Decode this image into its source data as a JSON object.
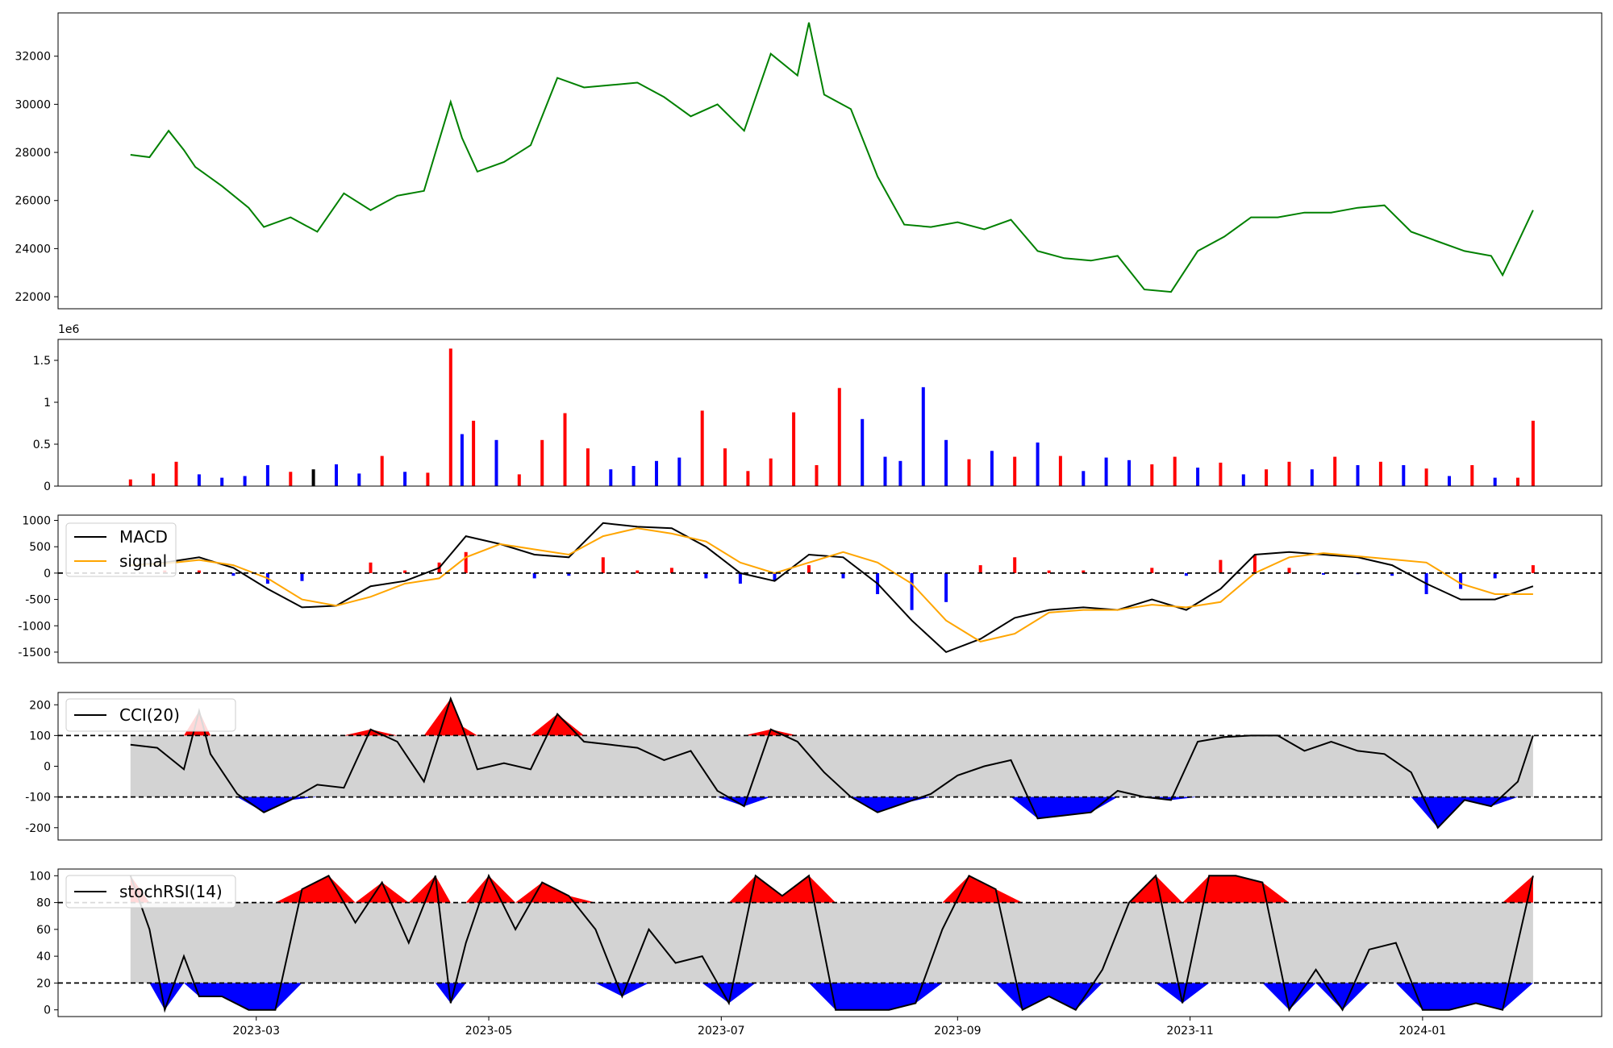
{
  "chart_data": [
    {
      "panel": "price",
      "type": "line",
      "color": "#008000",
      "x": [
        "2023-01-27",
        "2023-02-01",
        "2023-02-06",
        "2023-02-10",
        "2023-02-13",
        "2023-02-20",
        "2023-02-27",
        "2023-03-03",
        "2023-03-10",
        "2023-03-17",
        "2023-03-24",
        "2023-03-31",
        "2023-04-07",
        "2023-04-14",
        "2023-04-21",
        "2023-04-24",
        "2023-04-28",
        "2023-05-05",
        "2023-05-12",
        "2023-05-19",
        "2023-05-26",
        "2023-06-02",
        "2023-06-09",
        "2023-06-16",
        "2023-06-23",
        "2023-06-30",
        "2023-07-07",
        "2023-07-14",
        "2023-07-21",
        "2023-07-24",
        "2023-07-28",
        "2023-08-04",
        "2023-08-11",
        "2023-08-18",
        "2023-08-25",
        "2023-09-01",
        "2023-09-08",
        "2023-09-15",
        "2023-09-22",
        "2023-09-29",
        "2023-10-06",
        "2023-10-13",
        "2023-10-20",
        "2023-10-27",
        "2023-11-03",
        "2023-11-10",
        "2023-11-17",
        "2023-11-24",
        "2023-12-01",
        "2023-12-08",
        "2023-12-15",
        "2023-12-22",
        "2023-12-29",
        "2024-01-05",
        "2024-01-12",
        "2024-01-19",
        "2024-01-22",
        "2024-01-30"
      ],
      "values": [
        27900,
        27800,
        28900,
        28100,
        27400,
        26600,
        25700,
        24900,
        25300,
        24700,
        26300,
        25600,
        26200,
        26400,
        30100,
        28600,
        27200,
        27600,
        28300,
        31100,
        30700,
        30800,
        30900,
        30300,
        29500,
        30000,
        28900,
        32100,
        31200,
        33400,
        30400,
        29800,
        27000,
        25000,
        24900,
        25100,
        24800,
        25200,
        23900,
        23600,
        23500,
        23700,
        22300,
        22200,
        23900,
        24500,
        25300,
        25300,
        25500,
        25500,
        25700,
        25800,
        24700,
        24300,
        23900,
        23700,
        22900,
        25600
      ],
      "ylim": [
        21500,
        33800
      ],
      "yticks": [
        22000,
        24000,
        26000,
        28000,
        30000,
        32000
      ]
    },
    {
      "panel": "volume",
      "type": "bar",
      "scale_label": "1e6",
      "ylim": [
        0,
        1.75
      ],
      "yticks": [
        0.0,
        0.5,
        1.0,
        1.5
      ],
      "x": [
        "2023-01-27",
        "2023-02-02",
        "2023-02-08",
        "2023-02-14",
        "2023-02-20",
        "2023-02-26",
        "2023-03-04",
        "2023-03-10",
        "2023-03-16",
        "2023-03-22",
        "2023-03-28",
        "2023-04-03",
        "2023-04-09",
        "2023-04-15",
        "2023-04-21",
        "2023-04-24",
        "2023-04-27",
        "2023-05-03",
        "2023-05-09",
        "2023-05-15",
        "2023-05-21",
        "2023-05-27",
        "2023-06-02",
        "2023-06-08",
        "2023-06-14",
        "2023-06-20",
        "2023-06-26",
        "2023-07-02",
        "2023-07-08",
        "2023-07-14",
        "2023-07-20",
        "2023-07-26",
        "2023-08-01",
        "2023-08-07",
        "2023-08-13",
        "2023-08-17",
        "2023-08-23",
        "2023-08-29",
        "2023-09-04",
        "2023-09-10",
        "2023-09-16",
        "2023-09-22",
        "2023-09-28",
        "2023-10-04",
        "2023-10-10",
        "2023-10-16",
        "2023-10-22",
        "2023-10-28",
        "2023-11-03",
        "2023-11-09",
        "2023-11-15",
        "2023-11-21",
        "2023-11-27",
        "2023-12-03",
        "2023-12-09",
        "2023-12-15",
        "2023-12-21",
        "2023-12-27",
        "2024-01-02",
        "2024-01-08",
        "2024-01-14",
        "2024-01-20",
        "2024-01-26",
        "2024-01-30"
      ],
      "values": [
        0.08,
        0.15,
        0.29,
        0.14,
        0.1,
        0.12,
        0.25,
        0.17,
        0.2,
        0.26,
        0.15,
        0.36,
        0.17,
        0.16,
        1.64,
        0.62,
        0.78,
        0.55,
        0.14,
        0.55,
        0.87,
        0.45,
        0.2,
        0.24,
        0.3,
        0.34,
        0.9,
        0.45,
        0.18,
        0.33,
        0.88,
        0.25,
        1.17,
        0.8,
        0.35,
        0.3,
        1.18,
        0.55,
        0.32,
        0.42,
        0.35,
        0.52,
        0.36,
        0.18,
        0.34,
        0.31,
        0.26,
        0.35,
        0.22,
        0.28,
        0.14,
        0.2,
        0.29,
        0.2,
        0.35,
        0.25,
        0.29,
        0.25,
        0.21,
        0.12,
        0.25,
        0.1,
        0.1,
        0.78
      ],
      "colors": [
        "red",
        "red",
        "red",
        "blue",
        "blue",
        "blue",
        "blue",
        "red",
        "black",
        "blue",
        "blue",
        "red",
        "blue",
        "red",
        "red",
        "blue",
        "red",
        "blue",
        "red",
        "red",
        "red",
        "red",
        "blue",
        "blue",
        "blue",
        "blue",
        "red",
        "red",
        "red",
        "red",
        "red",
        "red",
        "red",
        "blue",
        "blue",
        "blue",
        "blue",
        "blue",
        "red",
        "blue",
        "red",
        "blue",
        "red",
        "blue",
        "blue",
        "blue",
        "red",
        "red",
        "blue",
        "red",
        "blue",
        "red",
        "red",
        "blue",
        "red",
        "blue",
        "red",
        "blue",
        "red",
        "blue",
        "red",
        "blue",
        "red",
        "red"
      ]
    },
    {
      "panel": "macd",
      "type": "line",
      "ylim": [
        -1700,
        1100
      ],
      "yticks": [
        -1500,
        -1000,
        -500,
        0,
        500,
        1000
      ],
      "x": [
        "2023-01-27",
        "2023-02-05",
        "2023-02-14",
        "2023-02-23",
        "2023-03-04",
        "2023-03-13",
        "2023-03-22",
        "2023-03-31",
        "2023-04-09",
        "2023-04-18",
        "2023-04-25",
        "2023-05-04",
        "2023-05-13",
        "2023-05-22",
        "2023-05-31",
        "2023-06-09",
        "2023-06-18",
        "2023-06-27",
        "2023-07-06",
        "2023-07-15",
        "2023-07-24",
        "2023-08-02",
        "2023-08-11",
        "2023-08-20",
        "2023-08-29",
        "2023-09-07",
        "2023-09-16",
        "2023-09-25",
        "2023-10-04",
        "2023-10-13",
        "2023-10-22",
        "2023-10-31",
        "2023-11-09",
        "2023-11-18",
        "2023-11-27",
        "2023-12-06",
        "2023-12-15",
        "2023-12-24",
        "2024-01-02",
        "2024-01-11",
        "2024-01-20",
        "2024-01-30"
      ],
      "series": [
        {
          "name": "MACD",
          "color": "#000000",
          "values": [
            150,
            200,
            300,
            100,
            -300,
            -650,
            -620,
            -250,
            -150,
            100,
            700,
            550,
            350,
            300,
            950,
            880,
            850,
            500,
            0,
            -150,
            350,
            300,
            -200,
            -900,
            -1500,
            -1250,
            -850,
            -700,
            -650,
            -700,
            -500,
            -700,
            -300,
            350,
            400,
            350,
            300,
            150,
            -200,
            -500,
            -500,
            -250
          ]
        },
        {
          "name": "signal",
          "color": "#ffa500",
          "values": [
            150,
            180,
            250,
            150,
            -100,
            -500,
            -620,
            -450,
            -200,
            -100,
            300,
            550,
            450,
            350,
            700,
            850,
            750,
            600,
            200,
            0,
            200,
            400,
            200,
            -200,
            -900,
            -1300,
            -1150,
            -750,
            -700,
            -700,
            -600,
            -650,
            -550,
            0,
            300,
            380,
            320,
            260,
            200,
            -200,
            -400,
            -400
          ]
        }
      ],
      "hist": [
        0,
        50,
        50,
        -50,
        -200,
        -150,
        0,
        200,
        50,
        200,
        400,
        0,
        -100,
        -50,
        300,
        50,
        100,
        -100,
        -200,
        -150,
        150,
        -100,
        -400,
        -700,
        -550,
        150,
        300,
        50,
        50,
        0,
        100,
        -50,
        250,
        350,
        100,
        -30,
        -20,
        -50,
        -400,
        -300,
        -100,
        150
      ]
    },
    {
      "panel": "cci",
      "type": "area",
      "ylim": [
        -240,
        240
      ],
      "yticks": [
        -200,
        -100,
        0,
        100,
        200
      ],
      "thresholds": [
        -100,
        100
      ],
      "x": [
        "2023-01-27",
        "2023-02-03",
        "2023-02-10",
        "2023-02-14",
        "2023-02-17",
        "2023-02-24",
        "2023-03-03",
        "2023-03-10",
        "2023-03-17",
        "2023-03-24",
        "2023-03-31",
        "2023-04-07",
        "2023-04-14",
        "2023-04-21",
        "2023-04-24",
        "2023-04-28",
        "2023-05-05",
        "2023-05-12",
        "2023-05-19",
        "2023-05-26",
        "2023-06-02",
        "2023-06-09",
        "2023-06-16",
        "2023-06-23",
        "2023-06-30",
        "2023-07-07",
        "2023-07-14",
        "2023-07-21",
        "2023-07-28",
        "2023-08-04",
        "2023-08-11",
        "2023-08-18",
        "2023-08-25",
        "2023-09-01",
        "2023-09-08",
        "2023-09-15",
        "2023-09-22",
        "2023-09-29",
        "2023-10-06",
        "2023-10-13",
        "2023-10-20",
        "2023-10-27",
        "2023-11-03",
        "2023-11-10",
        "2023-11-17",
        "2023-11-24",
        "2023-12-01",
        "2023-12-08",
        "2023-12-15",
        "2023-12-22",
        "2023-12-29",
        "2024-01-05",
        "2024-01-12",
        "2024-01-19",
        "2024-01-26",
        "2024-01-30"
      ],
      "values": [
        70,
        60,
        -10,
        180,
        40,
        -90,
        -150,
        -110,
        -60,
        -70,
        120,
        80,
        -50,
        220,
        130,
        -10,
        10,
        -10,
        170,
        80,
        70,
        60,
        20,
        50,
        -80,
        -130,
        120,
        80,
        -20,
        -100,
        -150,
        -120,
        -90,
        -30,
        0,
        20,
        -170,
        -160,
        -150,
        -80,
        -100,
        -110,
        80,
        95,
        100,
        100,
        50,
        80,
        50,
        40,
        -20,
        -200,
        -110,
        -130,
        -50,
        100
      ]
    },
    {
      "panel": "stochrsi",
      "type": "area",
      "ylim": [
        -5,
        105
      ],
      "yticks": [
        0,
        20,
        40,
        60,
        80,
        100
      ],
      "thresholds": [
        20,
        80
      ],
      "x": [
        "2023-01-27",
        "2023-02-01",
        "2023-02-05",
        "2023-02-10",
        "2023-02-14",
        "2023-02-20",
        "2023-02-27",
        "2023-03-06",
        "2023-03-13",
        "2023-03-20",
        "2023-03-27",
        "2023-04-03",
        "2023-04-10",
        "2023-04-17",
        "2023-04-21",
        "2023-04-25",
        "2023-05-01",
        "2023-05-08",
        "2023-05-15",
        "2023-05-22",
        "2023-05-29",
        "2023-06-05",
        "2023-06-12",
        "2023-06-19",
        "2023-06-26",
        "2023-07-03",
        "2023-07-10",
        "2023-07-17",
        "2023-07-24",
        "2023-07-31",
        "2023-08-07",
        "2023-08-14",
        "2023-08-21",
        "2023-08-28",
        "2023-09-04",
        "2023-09-11",
        "2023-09-18",
        "2023-09-25",
        "2023-10-02",
        "2023-10-09",
        "2023-10-16",
        "2023-10-23",
        "2023-10-30",
        "2023-11-06",
        "2023-11-13",
        "2023-11-20",
        "2023-11-27",
        "2023-12-04",
        "2023-12-11",
        "2023-12-18",
        "2023-12-25",
        "2024-01-01",
        "2024-01-08",
        "2024-01-15",
        "2024-01-22",
        "2024-01-30"
      ],
      "values": [
        100,
        60,
        0,
        40,
        10,
        10,
        0,
        0,
        90,
        100,
        65,
        95,
        50,
        100,
        5,
        50,
        100,
        60,
        95,
        85,
        60,
        10,
        60,
        35,
        40,
        5,
        100,
        85,
        100,
        0,
        0,
        0,
        5,
        60,
        100,
        90,
        0,
        10,
        0,
        30,
        80,
        100,
        5,
        100,
        100,
        95,
        0,
        30,
        0,
        45,
        50,
        0,
        0,
        5,
        0,
        100
      ],
      "series": [
        {
          "name": "stochRSI(14)",
          "color": "#000000"
        }
      ]
    }
  ],
  "cci_legend": "CCI(20)",
  "xaxis": {
    "range": [
      "2023-01-08",
      "2024-02-17"
    ],
    "ticks": [
      "2023-03",
      "2023-05",
      "2023-07",
      "2023-09",
      "2023-11",
      "2024-01"
    ]
  }
}
